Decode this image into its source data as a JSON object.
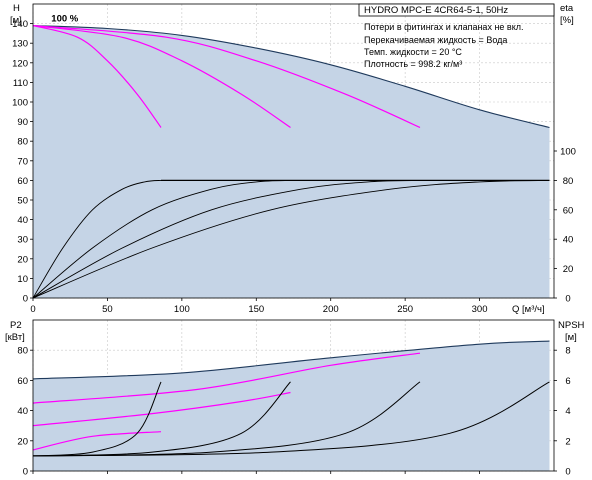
{
  "chart_data": [
    {
      "type": "line",
      "title": "HYDRO MPC-E 4CR64-5-1, 50Hz",
      "notes": [
        "Потери в фитингах и клапанах не вкл.",
        "Перекачиваемая жидкость = Вода",
        "Темп. жидкости = 20 °C",
        "Плотность = 998.2 кг/м³"
      ],
      "xlabel": "Q [м³/ч]",
      "xlim": [
        0,
        350
      ],
      "xticks": [
        0,
        50,
        100,
        150,
        200,
        250,
        300
      ],
      "ylabel_left": [
        "H",
        "[м]"
      ],
      "ylim_left": [
        0,
        150
      ],
      "yticks_left": [
        0,
        10,
        20,
        30,
        40,
        50,
        60,
        70,
        80,
        90,
        100,
        110,
        120,
        130,
        140
      ],
      "ylabel_right": [
        "eta",
        "[%]"
      ],
      "ylim_right": [
        0,
        200
      ],
      "yticks_right": [
        0,
        20,
        40,
        60,
        80,
        100
      ],
      "grid": true,
      "annotation": {
        "text": "100 %",
        "x": 19,
        "y": 140
      },
      "colors": {
        "envelope_fill": "#c5d4e6",
        "envelope_line": "#1f3a5c",
        "speed_curves": "#ff00ff",
        "eta_curves": "#000000"
      },
      "series": [
        {
          "role": "envelope",
          "x": [
            0,
            50,
            100,
            150,
            200,
            250,
            300,
            347
          ],
          "y": [
            139,
            137.5,
            134,
            127.5,
            119,
            108,
            96,
            87
          ]
        },
        {
          "role": "speed",
          "x": [
            0,
            30,
            50,
            70,
            86
          ],
          "y": [
            139,
            133,
            121,
            104,
            87
          ]
        },
        {
          "role": "speed",
          "x": [
            0,
            60,
            100,
            140,
            173
          ],
          "y": [
            139,
            133,
            121,
            104,
            87
          ]
        },
        {
          "role": "speed",
          "x": [
            0,
            90,
            150,
            210,
            260
          ],
          "y": [
            139,
            133,
            121,
            104,
            87
          ]
        },
        {
          "role": "eta",
          "x": [
            0,
            20,
            40,
            60,
            75,
            86
          ],
          "y": [
            0,
            34,
            60,
            74,
            79,
            80
          ]
        },
        {
          "role": "eta",
          "x": [
            0,
            40,
            80,
            120,
            150,
            173
          ],
          "y": [
            0,
            34,
            60,
            74,
            79,
            80
          ]
        },
        {
          "role": "eta",
          "x": [
            0,
            60,
            120,
            180,
            225,
            260
          ],
          "y": [
            0,
            34,
            60,
            74,
            79,
            80
          ]
        },
        {
          "role": "eta",
          "x": [
            0,
            80,
            160,
            240,
            300,
            347
          ],
          "y": [
            0,
            34,
            60,
            74,
            79,
            80
          ]
        },
        {
          "role": "eta_plateau",
          "x": [
            86,
            347
          ],
          "y": [
            80,
            80
          ]
        }
      ]
    },
    {
      "type": "line",
      "xlim": [
        0,
        350
      ],
      "xticks": [
        0,
        50,
        100,
        150,
        200,
        250,
        300
      ],
      "ylabel_left": [
        "P2",
        "[кВт]"
      ],
      "ylim_left": [
        0,
        100
      ],
      "yticks_left": [
        0,
        20,
        40,
        60,
        80
      ],
      "ylabel_right": [
        "NPSH",
        "[м]"
      ],
      "ylim_right": [
        0,
        10
      ],
      "yticks_right": [
        0,
        2,
        4,
        6,
        8
      ],
      "grid": true,
      "colors": {
        "envelope_fill": "#c5d4e6",
        "envelope_line": "#1f3a5c",
        "power_curves": "#ff00ff",
        "npsh_curves": "#000000"
      },
      "series": [
        {
          "role": "envelope",
          "x": [
            0,
            100,
            200,
            300,
            347
          ],
          "y": [
            61,
            65,
            75,
            84,
            86
          ]
        },
        {
          "role": "power",
          "x": [
            0,
            40,
            86
          ],
          "y": [
            14,
            23,
            26
          ]
        },
        {
          "role": "power",
          "x": [
            0,
            80,
            140,
            173
          ],
          "y": [
            30,
            38,
            46,
            52
          ]
        },
        {
          "role": "power",
          "x": [
            0,
            110,
            200,
            260
          ],
          "y": [
            45,
            54,
            70,
            78
          ]
        },
        {
          "role": "npsh",
          "x": [
            0,
            40,
            70,
            86
          ],
          "y": [
            1.0,
            1.25,
            2.5,
            5.9
          ]
        },
        {
          "role": "npsh",
          "x": [
            0,
            80,
            140,
            173
          ],
          "y": [
            1.0,
            1.25,
            2.5,
            5.9
          ]
        },
        {
          "role": "npsh",
          "x": [
            0,
            120,
            210,
            260
          ],
          "y": [
            1.0,
            1.25,
            2.5,
            5.9
          ]
        },
        {
          "role": "npsh",
          "x": [
            0,
            160,
            280,
            347
          ],
          "y": [
            1.0,
            1.25,
            2.5,
            5.9
          ]
        }
      ]
    }
  ]
}
